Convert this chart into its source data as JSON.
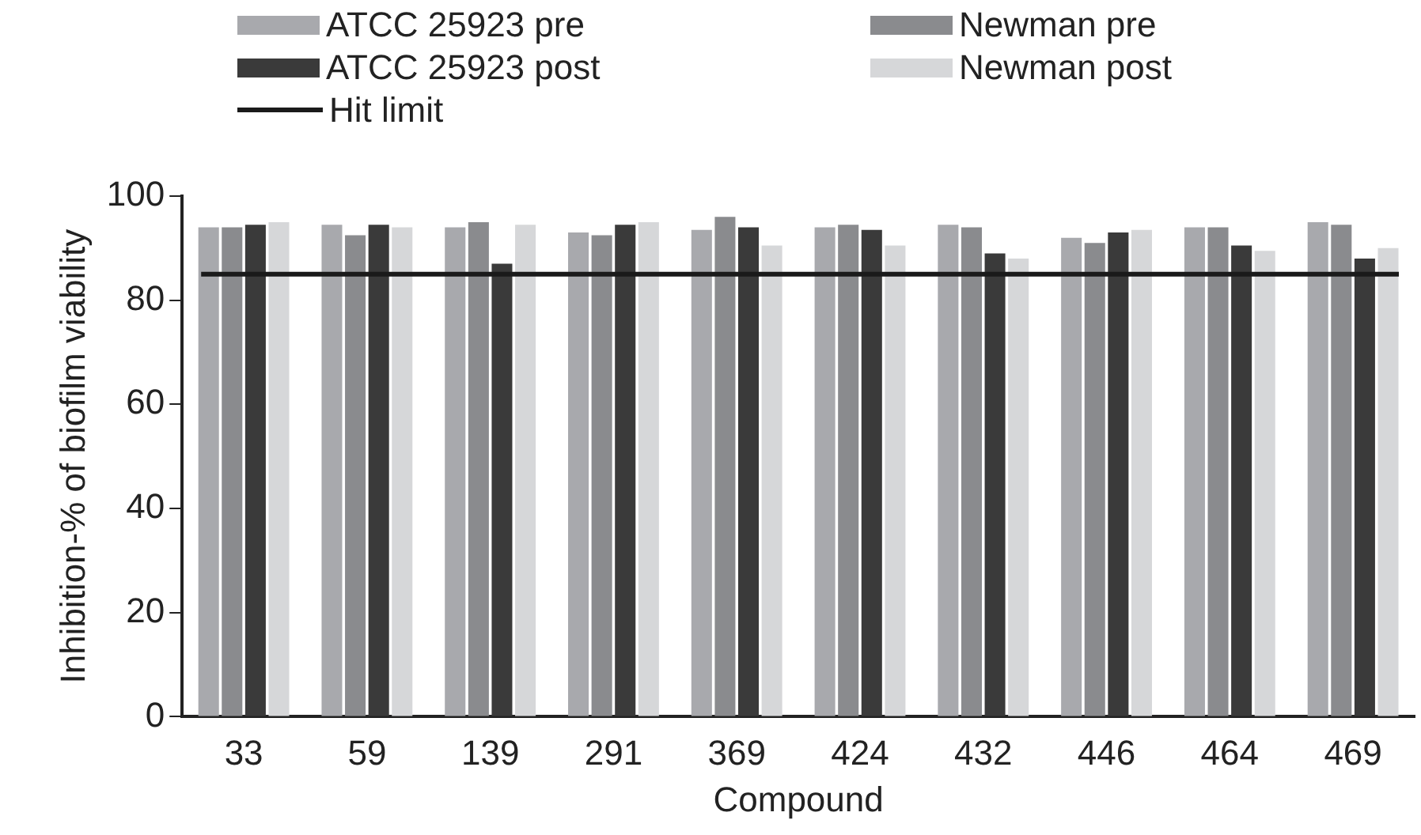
{
  "chart_data": {
    "type": "bar",
    "xlabel": "Compound",
    "ylabel": "Inhibition-% of biofilm viability",
    "categories": [
      "33",
      "59",
      "139",
      "291",
      "369",
      "424",
      "432",
      "446",
      "464",
      "469"
    ],
    "series": [
      {
        "name": "ATCC 25923 pre",
        "color": "#a8a9ad",
        "values": [
          94,
          94.5,
          94,
          93,
          93.5,
          94,
          94.5,
          92,
          94,
          95
        ]
      },
      {
        "name": "Newman pre",
        "color": "#8a8b8e",
        "values": [
          94,
          92.5,
          95,
          92.5,
          96,
          94.5,
          94,
          91,
          94,
          94.5
        ]
      },
      {
        "name": "ATCC 25923 post",
        "color": "#3a3a3a",
        "values": [
          94.5,
          94.5,
          87,
          94.5,
          94,
          93.5,
          89,
          93,
          90.5,
          88
        ]
      },
      {
        "name": "Newman post",
        "color": "#d6d7d9",
        "values": [
          95,
          94,
          94.5,
          95,
          90.5,
          90.5,
          88,
          93.5,
          89.5,
          90
        ]
      }
    ],
    "ref_lines": [
      {
        "axis": "y",
        "value": 85,
        "label": "Hit limit",
        "color": "#1a1a1a"
      }
    ],
    "ylim": [
      0,
      100
    ],
    "yticks": [
      0,
      20,
      40,
      60,
      80,
      100
    ],
    "grid": false,
    "legend": "top"
  }
}
